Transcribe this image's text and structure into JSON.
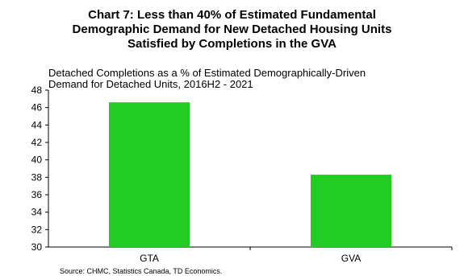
{
  "chart_data": {
    "type": "bar",
    "title_lines": [
      "Chart 7: Less than 40% of Estimated Fundamental",
      "Demographic Demand for New Detached Housing Units",
      "Satisfied by Completions in the GVA"
    ],
    "subtitle_lines": [
      "Detached Completions as a % of Estimated Demographically-Driven",
      "Demand for Detached Units, 2016H2 - 2021"
    ],
    "categories": [
      "GTA",
      "GVA"
    ],
    "values": [
      46.6,
      38.3
    ],
    "ylim": [
      30,
      48
    ],
    "yticks": [
      "30",
      "32",
      "34",
      "36",
      "38",
      "40",
      "42",
      "44",
      "46",
      "48"
    ],
    "grid": false,
    "bar_color": "#22cc22",
    "source": "Source: CHMC,  Statistics Canada,  TD Economics."
  }
}
